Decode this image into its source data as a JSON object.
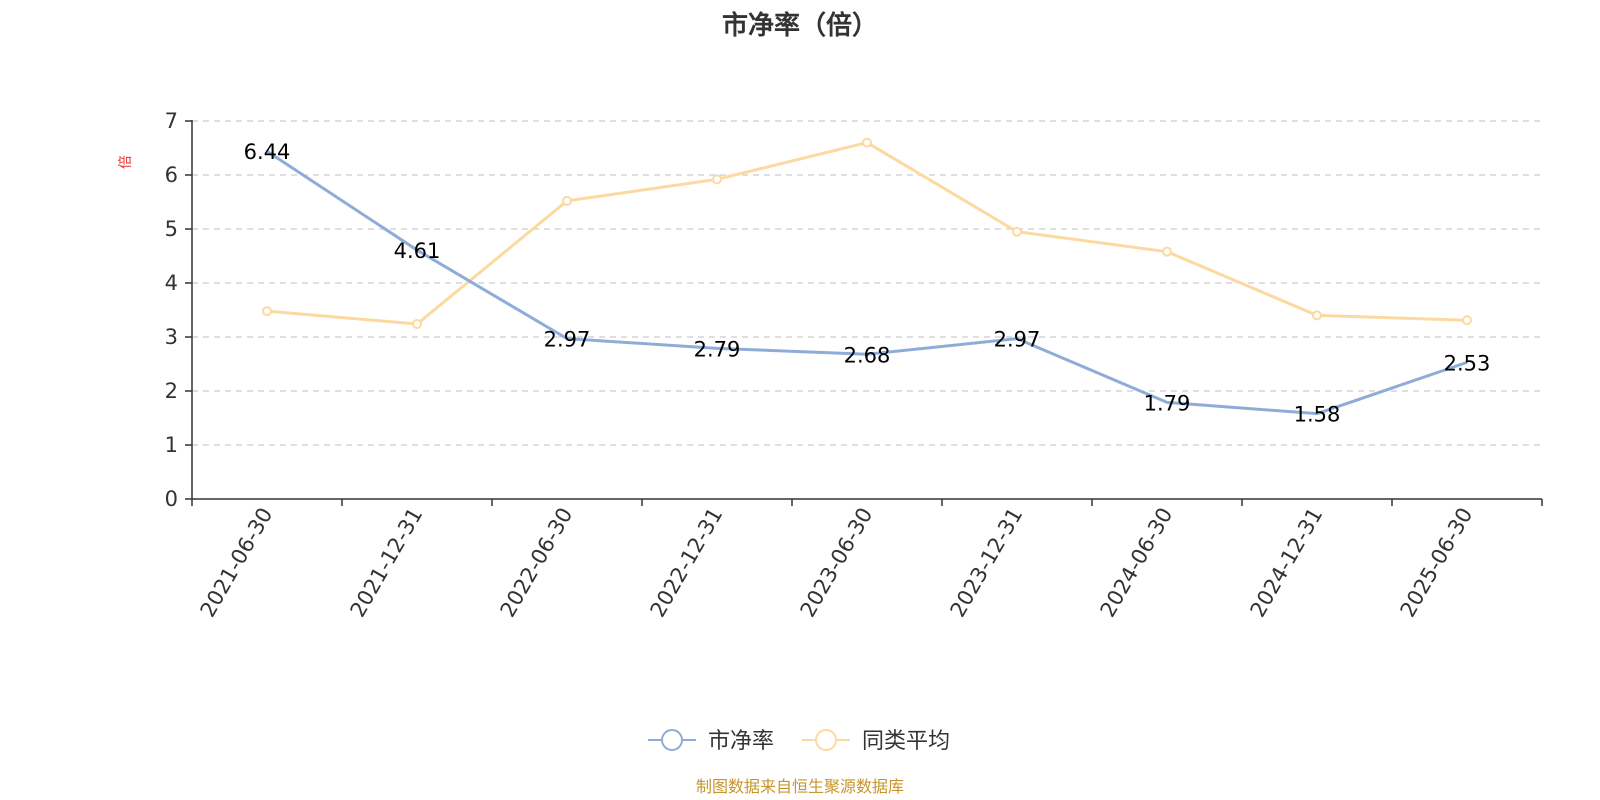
{
  "title": "市净率（倍）",
  "footer": "制图数据来自恒生聚源数据库",
  "colors": {
    "primary": "#8eacd8",
    "secondary": "#fcd9a0",
    "unit": "#e8322e",
    "footer": "#c8952a",
    "axis": "#333333",
    "grid": "#cccccc"
  },
  "chart_data": {
    "type": "line",
    "title": "市净率（倍）",
    "xlabel": "",
    "ylabel": "倍",
    "categories": [
      "2021-06-30",
      "2021-12-31",
      "2022-06-30",
      "2022-12-31",
      "2023-06-30",
      "2023-12-31",
      "2024-06-30",
      "2024-12-31",
      "2025-06-30"
    ],
    "ylim": [
      0,
      7
    ],
    "yticks": [
      0,
      1,
      2,
      3,
      4,
      5,
      6,
      7
    ],
    "grid": true,
    "legend_position": "bottom-center",
    "series": [
      {
        "name": "市净率",
        "color": "#8eacd8",
        "values": [
          6.44,
          4.61,
          2.97,
          2.79,
          2.68,
          2.97,
          1.79,
          1.58,
          2.53
        ],
        "labels": [
          "6.44",
          "4.61",
          "2.97",
          "2.79",
          "2.68",
          "2.97",
          "1.79",
          "1.58",
          "2.53"
        ],
        "show_markers": false
      },
      {
        "name": "同类平均",
        "color": "#fcd9a0",
        "values": [
          3.48,
          3.24,
          5.52,
          5.92,
          6.6,
          4.95,
          4.58,
          3.4,
          3.31
        ],
        "show_markers": true
      }
    ]
  }
}
